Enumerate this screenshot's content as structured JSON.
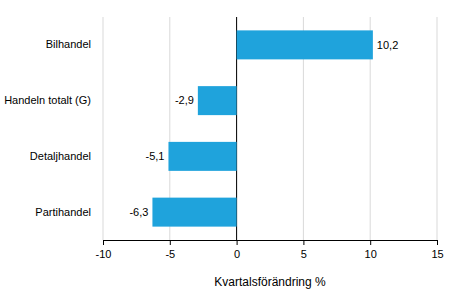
{
  "chart_data": {
    "type": "bar",
    "orientation": "horizontal",
    "categories": [
      "Bilhandel",
      "Handeln totalt (G)",
      "Detaljhandel",
      "Partihandel"
    ],
    "values": [
      10.2,
      -2.9,
      -5.1,
      -6.3
    ],
    "value_labels": [
      "10,2",
      "-2,9",
      "-5,1",
      "-6,3"
    ],
    "color": "#1fa3dc",
    "xlim": [
      -10,
      15
    ],
    "xticks": [
      -10,
      -5,
      0,
      5,
      10,
      15
    ],
    "x_label": "Kvartalsförändring %",
    "grid": true,
    "data_labels": true
  }
}
